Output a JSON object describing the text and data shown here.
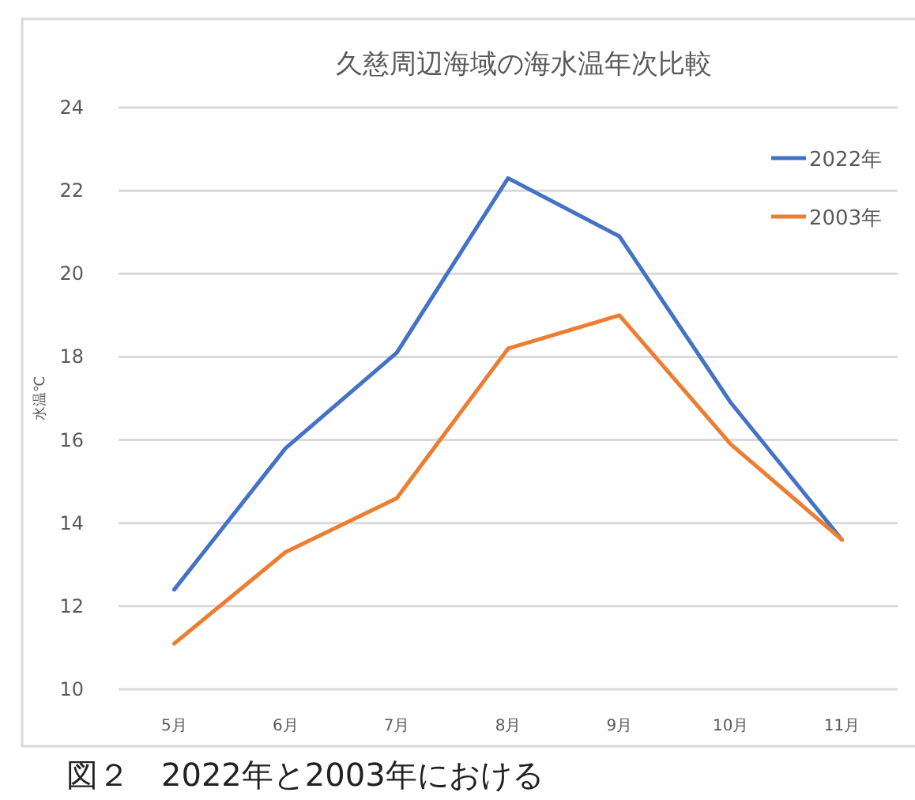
{
  "chart_data": {
    "type": "line",
    "title": "久慈周辺海域の海水温年次比較",
    "ylabel": "水温℃",
    "categories": [
      "5月",
      "6月",
      "7月",
      "8月",
      "9月",
      "10月",
      "11月"
    ],
    "series": [
      {
        "name": "2022年",
        "color": "#4472c4",
        "values": [
          12.4,
          15.8,
          18.1,
          22.3,
          20.9,
          16.9,
          13.6
        ]
      },
      {
        "name": "2003年",
        "color": "#ed7d31",
        "values": [
          11.1,
          13.3,
          14.6,
          18.2,
          19.0,
          15.9,
          13.6
        ]
      }
    ],
    "ylim": [
      10,
      24
    ],
    "yticks": [
      10,
      12,
      14,
      16,
      18,
      20,
      22,
      24
    ],
    "grid": "y",
    "legend": "top right",
    "marker": "none",
    "line_style": "solid",
    "annotations": [
      "図２　2022年と2003年における"
    ]
  }
}
